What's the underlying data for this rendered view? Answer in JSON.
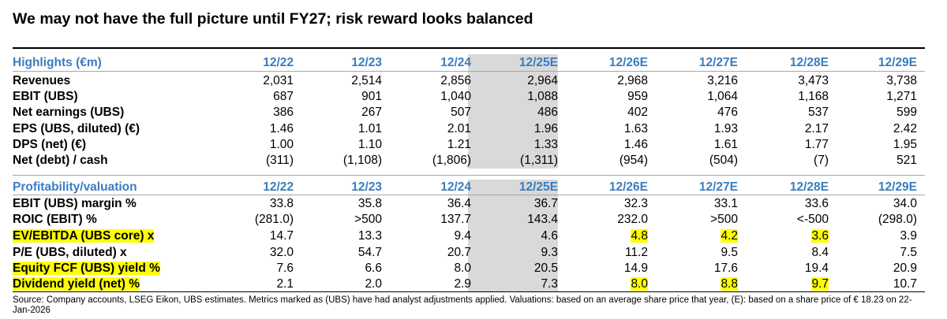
{
  "title": "We may not have the full picture until FY27; risk reward looks balanced",
  "periods": [
    "12/22",
    "12/23",
    "12/24",
    "12/25E",
    "12/26E",
    "12/27E",
    "12/28E",
    "12/29E"
  ],
  "sections": [
    {
      "header": "Highlights (€m)",
      "rows": [
        {
          "label": "Revenues",
          "values": [
            "2,031",
            "2,514",
            "2,856",
            "2,964",
            "2,968",
            "3,216",
            "3,473",
            "3,738"
          ]
        },
        {
          "label": "EBIT (UBS)",
          "values": [
            "687",
            "901",
            "1,040",
            "1,088",
            "959",
            "1,064",
            "1,168",
            "1,271"
          ]
        },
        {
          "label": "Net earnings (UBS)",
          "values": [
            "386",
            "267",
            "507",
            "486",
            "402",
            "476",
            "537",
            "599"
          ]
        },
        {
          "label": "EPS (UBS, diluted) (€)",
          "values": [
            "1.46",
            "1.01",
            "2.01",
            "1.96",
            "1.63",
            "1.93",
            "2.17",
            "2.42"
          ]
        },
        {
          "label": "DPS (net) (€)",
          "values": [
            "1.00",
            "1.10",
            "1.21",
            "1.33",
            "1.46",
            "1.61",
            "1.77",
            "1.95"
          ]
        },
        {
          "label": "Net (debt) / cash",
          "values": [
            "(311)",
            "(1,108)",
            "(1,806)",
            "(1,311)",
            "(954)",
            "(504)",
            "(7)",
            "521"
          ]
        }
      ]
    },
    {
      "header": "Profitability/valuation",
      "rows": [
        {
          "label": "EBIT (UBS) margin %",
          "values": [
            "33.8",
            "35.8",
            "36.4",
            "36.7",
            "32.3",
            "33.1",
            "33.6",
            "34.0"
          ]
        },
        {
          "label": "ROIC (EBIT) %",
          "values": [
            "(281.0)",
            ">500",
            "137.7",
            "143.4",
            "232.0",
            ">500",
            "<-500",
            "(298.0)"
          ]
        },
        {
          "label": "EV/EBITDA (UBS core) x",
          "values": [
            "14.7",
            "13.3",
            "9.4",
            "4.6",
            "4.8",
            "4.2",
            "3.6",
            "3.9"
          ],
          "highlight_label": true,
          "highlight_cols": [
            4,
            5,
            6
          ]
        },
        {
          "label": "P/E (UBS, diluted) x",
          "values": [
            "32.0",
            "54.7",
            "20.7",
            "9.3",
            "11.2",
            "9.5",
            "8.4",
            "7.5"
          ]
        },
        {
          "label": "Equity FCF (UBS) yield %",
          "values": [
            "7.6",
            "6.6",
            "8.0",
            "20.5",
            "14.9",
            "17.6",
            "19.4",
            "20.9"
          ],
          "highlight_label": true
        },
        {
          "label": "Dividend yield (net) %",
          "values": [
            "2.1",
            "2.0",
            "2.9",
            "7.3",
            "8.0",
            "8.8",
            "9.7",
            "10.7"
          ],
          "highlight_label": true,
          "highlight_cols": [
            4,
            5,
            6
          ]
        }
      ]
    }
  ],
  "source": "Source: Company accounts, LSEG Eikon, UBS estimates. Metrics marked as (UBS) have had analyst adjustments applied. Valuations: based on an average share price that year, (E): based on a share price of € 18.23 on 22-Jan-2026",
  "colors": {
    "header_blue": "#3a7dbf",
    "highlight_yellow": "#ffff00",
    "forecast_shade": "#d9d9d9"
  }
}
